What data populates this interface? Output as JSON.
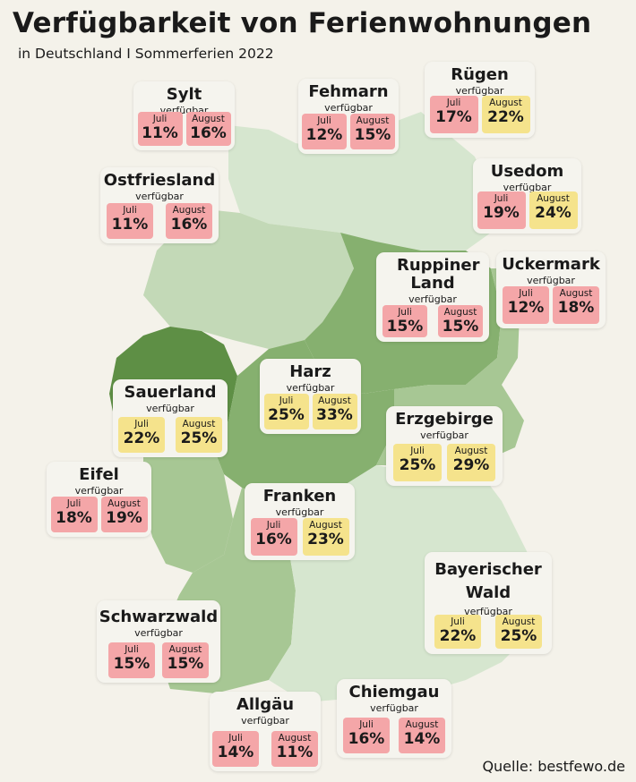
{
  "title": "Verfügbarkeit von Ferienwohnungen",
  "subtitle": "in Deutschland I Sommerferien 2022",
  "source": "Quelle: bestfewo.de",
  "colors": {
    "low": "#f4a6a8",
    "high": "#f5e38c",
    "card": "#f5f4ee",
    "map_shades": [
      "#d6e6cf",
      "#c3d9b7",
      "#a7c794",
      "#86b06f",
      "#5e8f45"
    ]
  },
  "regions": [
    {
      "name": "Sylt",
      "sub": "verfügbar",
      "month1": "Juli",
      "value1": "11%",
      "tone1": "pink",
      "month2": "August",
      "value2": "16%",
      "tone2": "pink"
    },
    {
      "name": "Fehmarn",
      "sub": "verfügbar",
      "month1": "Juli",
      "value1": "12%",
      "tone1": "pink",
      "month2": "August",
      "value2": "15%",
      "tone2": "pink"
    },
    {
      "name": "Rügen",
      "sub": "verfügbar",
      "month1": "Juli",
      "value1": "17%",
      "tone1": "pink",
      "month2": "August",
      "value2": "22%",
      "tone2": "yellow"
    },
    {
      "name": "Ostfriesland",
      "sub": "verfügbar",
      "month1": "Juli",
      "value1": "11%",
      "tone1": "pink",
      "month2": "August",
      "value2": "16%",
      "tone2": "pink"
    },
    {
      "name": "Usedom",
      "sub": "verfügbar",
      "month1": "Juli",
      "value1": "19%",
      "tone1": "pink",
      "month2": "August",
      "value2": "24%",
      "tone2": "yellow"
    },
    {
      "name": "Ruppiner Land",
      "sub": "verfügbar",
      "month1": "Juli",
      "value1": "15%",
      "tone1": "pink",
      "month2": "August",
      "value2": "15%",
      "tone2": "pink"
    },
    {
      "name": "Uckermark",
      "sub": "verfügbar",
      "month1": "Juli",
      "value1": "12%",
      "tone1": "pink",
      "month2": "August",
      "value2": "18%",
      "tone2": "pink"
    },
    {
      "name": "Harz",
      "sub": "verfügbar",
      "month1": "Juli",
      "value1": "25%",
      "tone1": "yellow",
      "month2": "August",
      "value2": "33%",
      "tone2": "yellow"
    },
    {
      "name": "Sauerland",
      "sub": "verfügbar",
      "month1": "Juli",
      "value1": "22%",
      "tone1": "yellow",
      "month2": "August",
      "value2": "25%",
      "tone2": "yellow"
    },
    {
      "name": "Erzgebirge",
      "sub": "verfügbar",
      "month1": "Juli",
      "value1": "25%",
      "tone1": "yellow",
      "month2": "August",
      "value2": "29%",
      "tone2": "yellow"
    },
    {
      "name": "Eifel",
      "sub": "verfügbar",
      "month1": "Juli",
      "value1": "18%",
      "tone1": "pink",
      "month2": "August",
      "value2": "19%",
      "tone2": "pink"
    },
    {
      "name": "Franken",
      "sub": "verfügbar",
      "month1": "Juli",
      "value1": "16%",
      "tone1": "pink",
      "month2": "August",
      "value2": "23%",
      "tone2": "yellow"
    },
    {
      "name": "Bayerischer Wald",
      "sub": "verfügbar",
      "month1": "Juli",
      "value1": "22%",
      "tone1": "yellow",
      "month2": "August",
      "value2": "25%",
      "tone2": "yellow"
    },
    {
      "name": "Schwarzwald",
      "sub": "verfügbar",
      "month1": "Juli",
      "value1": "15%",
      "tone1": "pink",
      "month2": "August",
      "value2": "15%",
      "tone2": "pink"
    },
    {
      "name": "Allgäu",
      "sub": "verfügbar",
      "month1": "Juli",
      "value1": "14%",
      "tone1": "pink",
      "month2": "August",
      "value2": "11%",
      "tone2": "pink"
    },
    {
      "name": "Chiemgau",
      "sub": "verfügbar",
      "month1": "Juli",
      "value1": "16%",
      "tone1": "pink",
      "month2": "August",
      "value2": "14%",
      "tone2": "pink"
    }
  ]
}
